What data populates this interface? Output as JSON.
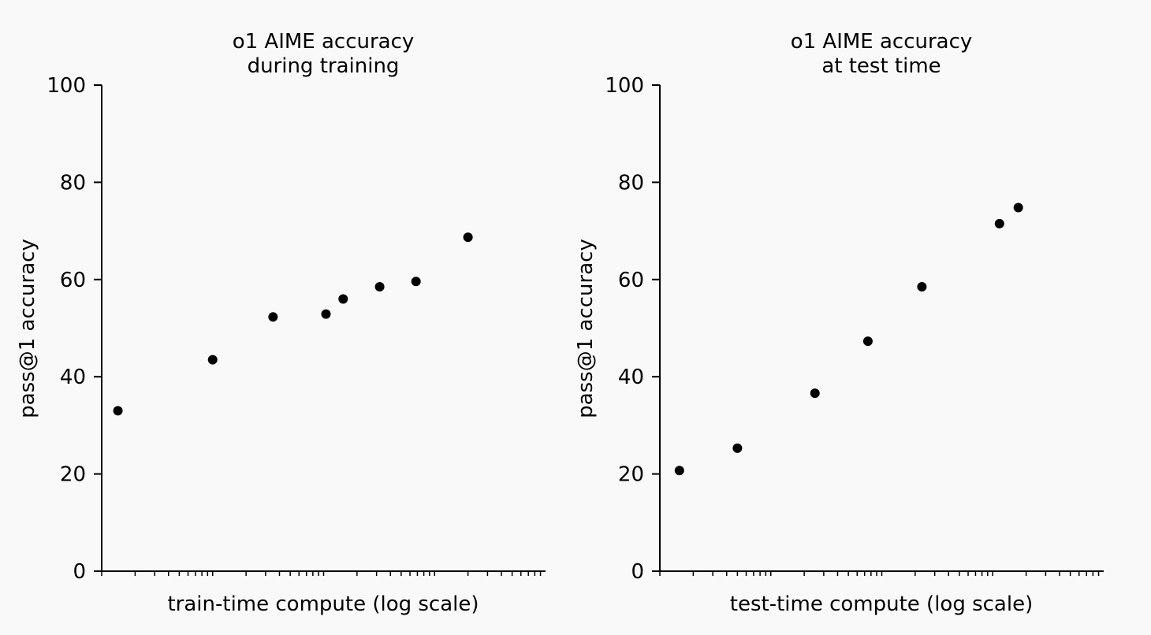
{
  "chart_data": [
    {
      "type": "scatter",
      "title_lines": [
        "o1 AIME accuracy",
        "during training"
      ],
      "xlabel": "train-time compute (log scale)",
      "ylabel": "pass@1 accuracy",
      "xscale": "log",
      "xlim": [
        1,
        10000
      ],
      "ylim": [
        0,
        100
      ],
      "yticks": [
        0,
        20,
        40,
        60,
        80,
        100
      ],
      "grid": false,
      "series": [
        {
          "x": [
            1.4,
            10,
            35,
            105,
            150,
            320,
            680,
            2000
          ],
          "y": [
            33,
            43.5,
            52.3,
            52.9,
            56,
            58.5,
            59.6,
            68.7
          ]
        }
      ]
    },
    {
      "type": "scatter",
      "title_lines": [
        "o1 AIME accuracy",
        "at test time"
      ],
      "xlabel": "test-time compute (log scale)",
      "ylabel": "pass@1 accuracy",
      "xscale": "log",
      "xlim": [
        1,
        10000
      ],
      "ylim": [
        0,
        100
      ],
      "yticks": [
        0,
        20,
        40,
        60,
        80,
        100
      ],
      "grid": false,
      "series": [
        {
          "x": [
            1.5,
            5,
            25,
            75,
            230,
            1150,
            1700
          ],
          "y": [
            20.7,
            25.3,
            36.6,
            47.3,
            58.5,
            71.5,
            74.8
          ]
        }
      ]
    }
  ]
}
